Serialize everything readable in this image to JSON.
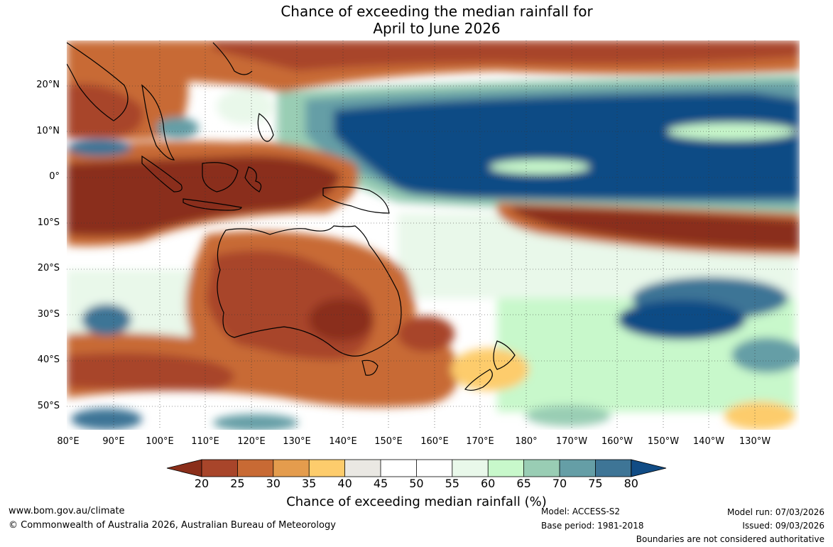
{
  "title": {
    "line1": "Chance of exceeding the median rainfall for",
    "line2": "April to June 2026"
  },
  "map": {
    "lat_labels": [
      "20°N",
      "10°N",
      "0°",
      "10°S",
      "20°S",
      "30°S",
      "40°S",
      "50°S"
    ],
    "lon_labels": [
      "80°E",
      "90°E",
      "100°E",
      "110°E",
      "120°E",
      "130°E",
      "140°E",
      "150°E",
      "160°E",
      "170°E",
      "180°",
      "170°W",
      "160°W",
      "150°W",
      "140°W",
      "130°W"
    ]
  },
  "legend": {
    "title": "Chance of exceeding median rainfall (%)",
    "ticks": [
      "20",
      "25",
      "30",
      "35",
      "40",
      "45",
      "50",
      "55",
      "60",
      "65",
      "70",
      "75",
      "80"
    ],
    "colors": [
      "#8a2e1a",
      "#a8452a",
      "#c86a34",
      "#e49c4d",
      "#fdcc6c",
      "#eae8e3",
      "#ffffff",
      "#ffffff",
      "#e9f8ea",
      "#c8f8cb",
      "#99cdb4",
      "#659ea6",
      "#3e7596",
      "#114c85"
    ]
  },
  "footer": {
    "website": "www.bom.gov.au/climate",
    "copyright": "© Commonwealth of Australia 2026, Australian Bureau of Meteorology",
    "model": "Model: ACCESS-S2",
    "base_period": "Base period: 1981-2018",
    "model_run": "Model run: 07/03/2026",
    "issued": "Issued: 09/03/2026",
    "disclaimer": "Boundaries are not considered authoritative"
  }
}
